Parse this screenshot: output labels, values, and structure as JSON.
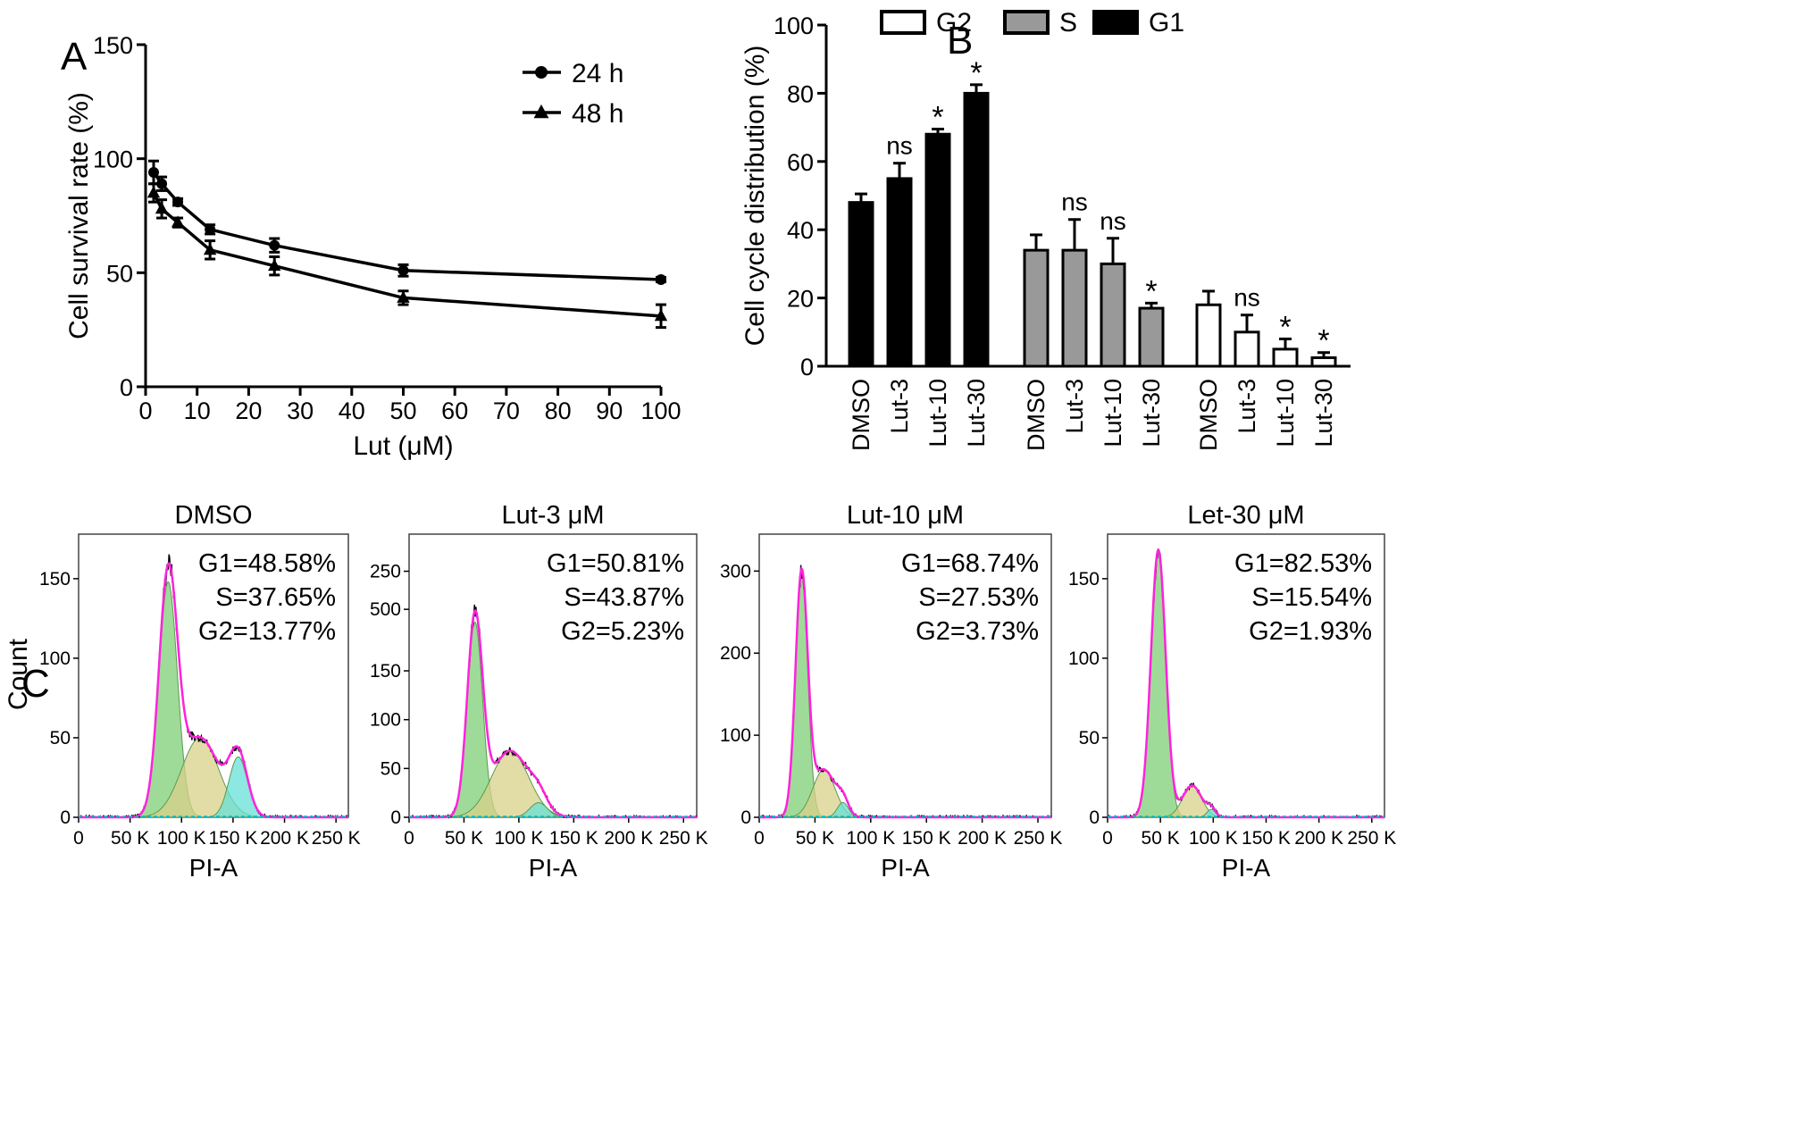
{
  "panels": {
    "A": {
      "letter": "A"
    },
    "B": {
      "letter": "B"
    },
    "C": {
      "letter": "C"
    }
  },
  "chart_data": [
    {
      "id": "A",
      "type": "line",
      "title": "",
      "xlabel": "Lut (μM)",
      "ylabel": "Cell survival rate (%)",
      "xlim": [
        0,
        100
      ],
      "ylim": [
        0,
        150
      ],
      "xticks": [
        0,
        10,
        20,
        30,
        40,
        50,
        60,
        70,
        80,
        90,
        100
      ],
      "yticks": [
        0,
        50,
        100,
        150
      ],
      "legend_position": "top-right",
      "series": [
        {
          "name": "24 h",
          "marker": "circle",
          "x": [
            1.56,
            3.13,
            6.25,
            12.5,
            25,
            50,
            100
          ],
          "y": [
            94,
            89,
            81,
            69,
            62,
            51,
            47
          ],
          "err": [
            5,
            3,
            1.5,
            2,
            3,
            2.5,
            1
          ]
        },
        {
          "name": "48 h",
          "marker": "triangle",
          "x": [
            1.56,
            3.13,
            6.25,
            12.5,
            25,
            50,
            100
          ],
          "y": [
            85,
            78,
            72,
            60,
            53,
            39,
            31
          ],
          "err": [
            4,
            4,
            2,
            4,
            4,
            3,
            5
          ]
        }
      ]
    },
    {
      "id": "B",
      "type": "bar",
      "title": "",
      "xlabel": "",
      "ylabel": "Cell cycle distribution (%)",
      "ylim": [
        0,
        100
      ],
      "yticks": [
        0,
        20,
        40,
        60,
        80,
        100
      ],
      "legend_position": "top",
      "categories": [
        "DMSO",
        "Lut-3",
        "Lut-10",
        "Lut-30"
      ],
      "legend": [
        {
          "name": "G2",
          "fill": "#ffffff"
        },
        {
          "name": "S",
          "fill": "#999999"
        },
        {
          "name": "G1",
          "fill": "#000000"
        }
      ],
      "groups": [
        {
          "name": "G1",
          "fill": "#000000",
          "values": [
            48,
            55,
            68,
            80
          ],
          "err": [
            2.5,
            4.5,
            1.5,
            2.5
          ],
          "sig": [
            "",
            "ns",
            "*",
            "*"
          ]
        },
        {
          "name": "S",
          "fill": "#999999",
          "values": [
            34,
            34,
            30,
            17
          ],
          "err": [
            4.5,
            9,
            7.5,
            1.5
          ],
          "sig": [
            "",
            "ns",
            "ns",
            "*"
          ]
        },
        {
          "name": "G2",
          "fill": "#ffffff",
          "values": [
            18,
            10,
            5,
            2.5
          ],
          "err": [
            4,
            5,
            3,
            1.5
          ],
          "sig": [
            "",
            "ns",
            "*",
            "*"
          ]
        }
      ]
    },
    {
      "id": "C",
      "type": "area",
      "xlabel": "PI-A",
      "ylabel": "Count",
      "xticks_labels": [
        "0",
        "50 K",
        "100 K",
        "150 K",
        "200 K",
        "250 K"
      ],
      "xlim_k": [
        0,
        262
      ],
      "colors": {
        "g1": "#7fcf76",
        "s": "#d8d08a",
        "g2": "#66e0d6",
        "fit": "#ff22dd",
        "data": "#000000"
      },
      "histograms": [
        {
          "title": "DMSO",
          "ymax": 178,
          "yticks": [
            0,
            50,
            100,
            150
          ],
          "annotations": [
            "G1=48.58%",
            "S=37.65%",
            "G2=13.77%"
          ],
          "g1": {
            "mu": 87,
            "sd": 9,
            "h": 148
          },
          "s": {
            "mu": 118,
            "sd": 18,
            "h": 50
          },
          "g2": {
            "mu": 155,
            "sd": 9,
            "h": 38
          }
        },
        {
          "title": "Lut-3 μM",
          "ymax": 290,
          "yticks": [
            0,
            50,
            100,
            150,
            250,
            500
          ],
          "annotations": [
            "G1=50.81%",
            "S=43.87%",
            "G2=5.23%"
          ],
          "g1": {
            "mu": 60,
            "sd": 7,
            "h": 200
          },
          "s": {
            "mu": 92,
            "sd": 17,
            "h": 68
          },
          "g2": {
            "mu": 118,
            "sd": 8,
            "h": 15
          }
        },
        {
          "title": "Lut-10 μM",
          "ymax": 345,
          "yticks": [
            0,
            100,
            200,
            300
          ],
          "annotations": [
            "G1=68.74%",
            "S=27.53%",
            "G2=3.73%"
          ],
          "g1": {
            "mu": 38,
            "sd": 5.5,
            "h": 295
          },
          "s": {
            "mu": 58,
            "sd": 10,
            "h": 58
          },
          "g2": {
            "mu": 75,
            "sd": 5,
            "h": 18
          }
        },
        {
          "title": "Let-30 μM",
          "ymax": 178,
          "yticks": [
            0,
            50,
            100,
            150
          ],
          "annotations": [
            "G1=82.53%",
            "S=15.54%",
            "G2=1.93%"
          ],
          "g1": {
            "mu": 48,
            "sd": 7,
            "h": 168
          },
          "s": {
            "mu": 80,
            "sd": 9,
            "h": 20
          },
          "g2": {
            "mu": 98,
            "sd": 4,
            "h": 5
          }
        }
      ]
    }
  ]
}
